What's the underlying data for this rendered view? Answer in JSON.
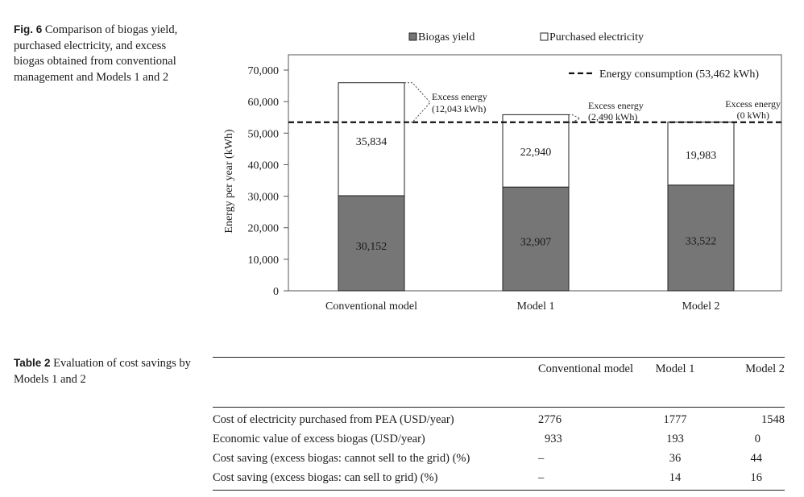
{
  "figure": {
    "label": "Fig. 6",
    "caption": "Comparison of biogas yield, purchased electricity, and excess biogas obtained from conventional management and Models 1 and 2"
  },
  "chart_data": {
    "type": "bar",
    "stacked": true,
    "ylabel": "Energy per year (kWh)",
    "ylim": [
      0,
      70000
    ],
    "yticks": [
      "0",
      "10,000",
      "20,000",
      "30,000",
      "40,000",
      "50,000",
      "60,000",
      "70,000"
    ],
    "categories": [
      "Conventional model",
      "Model 1",
      "Model 2"
    ],
    "series": [
      {
        "name": "Biogas yield",
        "color": "#767676",
        "values": [
          30152,
          32907,
          33522
        ],
        "labels": [
          "30,152",
          "32,907",
          "33,522"
        ]
      },
      {
        "name": "Purchased electricity",
        "color": "#ffffff",
        "values": [
          35834,
          22940,
          19983
        ],
        "labels": [
          "35,834",
          "22,940",
          "19,983"
        ]
      }
    ],
    "reference_line": {
      "label": "Energy consumption (53,462 kWh)",
      "value": 53462,
      "style": "dashed"
    },
    "annotations": [
      {
        "category": "Conventional model",
        "line1": "Excess energy",
        "line2": "(12,043 kWh)"
      },
      {
        "category": "Model 1",
        "line1": "Excess energy",
        "line2": "(2,490 kWh)"
      },
      {
        "category": "Model 2",
        "line1": "Excess energy",
        "line2": "(0 kWh)"
      }
    ],
    "legend_position": "top"
  },
  "table": {
    "label": "Table 2",
    "caption": "Evaluation of cost savings by Models 1 and 2",
    "headers": [
      "",
      "Conventional model",
      "Model 1",
      "Model 2"
    ],
    "rows": [
      {
        "label": "Cost of electricity purchased from PEA (USD/year)",
        "values": [
          "2776",
          "1777",
          "1548"
        ]
      },
      {
        "label": "Economic value of excess biogas (USD/year)",
        "values": [
          "933",
          "193",
          "0"
        ]
      },
      {
        "label": "Cost saving (excess biogas: cannot sell to the grid) (%)",
        "values": [
          "–",
          "36",
          "44"
        ]
      },
      {
        "label": "Cost saving (excess biogas: can sell to grid) (%)",
        "values": [
          "–",
          "14",
          "16"
        ]
      }
    ]
  }
}
